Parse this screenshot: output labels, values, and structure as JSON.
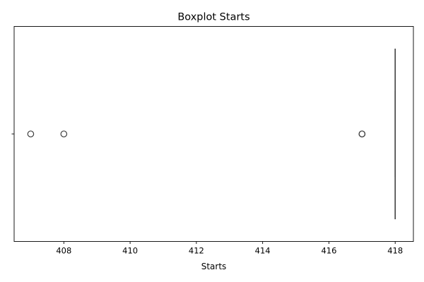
{
  "chart_data": {
    "type": "boxplot",
    "orientation": "horizontal",
    "title": "Boxplot Starts",
    "xlabel": "Starts",
    "ylabel": "",
    "xlim": [
      406.5,
      418.55
    ],
    "xticks": [
      408,
      410,
      412,
      414,
      416,
      418
    ],
    "grid": false,
    "box": {
      "min": 418,
      "q1": 418,
      "median": 418,
      "q3": 418,
      "max": 418
    },
    "outliers": [
      407,
      408,
      417,
      417
    ],
    "box_color": "#3a78b4",
    "line_color": "#3f3f3f"
  }
}
